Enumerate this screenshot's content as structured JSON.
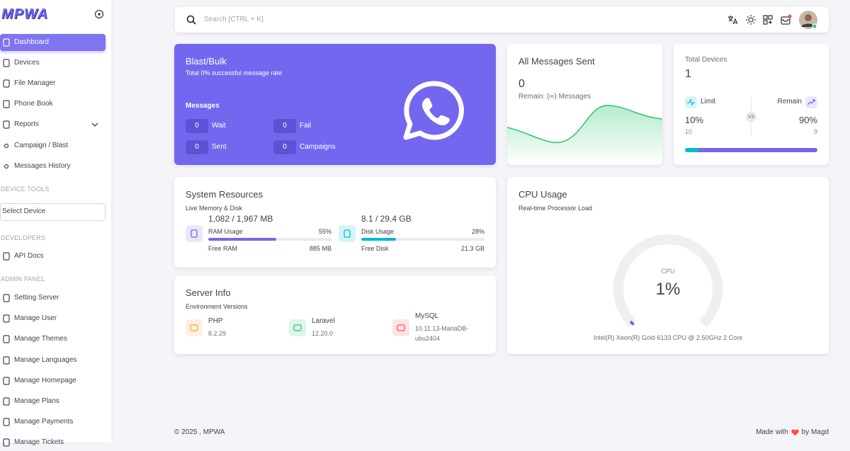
{
  "sidebar": {
    "logo": "MPWA",
    "menu": [
      "Dashboard",
      "Devices",
      "File Manager",
      "Phone Book",
      "Reports",
      "Campaign / Blast",
      "Messages History"
    ],
    "device_tools": "DEVICE TOOLS",
    "select_device": "Select Device",
    "developers": "DEVELOPERS",
    "api_docs": "API Docs",
    "admin_panel": "ADMIN PANEL",
    "admin": [
      "Setting Server",
      "Manage User",
      "Manage Themes",
      "Manage Languages",
      "Manage Homepage",
      "Manage Plans",
      "Manage Payments",
      "Manage Tickets"
    ]
  },
  "search": {
    "placeholder": "Search [CTRL + K]"
  },
  "blast": {
    "title": "Blast/Bulk",
    "subtitle": "Total 0% successful message rate",
    "messages": "Messages",
    "stats": [
      {
        "value": 0,
        "label": "Wait"
      },
      {
        "value": 0,
        "label": "Fail"
      },
      {
        "value": 0,
        "label": "Sent"
      },
      {
        "value": 0,
        "label": "Campaigns"
      }
    ]
  },
  "messages_sent": {
    "title": "All Messages Sent",
    "value": 0,
    "remain": "Remain: (∞) Messages"
  },
  "devices": {
    "title": "Total Devices",
    "value": 1,
    "limit": {
      "name": "Limit",
      "percent": {
        "value": 10,
        "label": "10%"
      },
      "count": 10
    },
    "remain": {
      "name": "Remain",
      "percent": {
        "value": 90,
        "label": "90%"
      },
      "count": 9
    },
    "vs": "VS"
  },
  "resources": {
    "title": "System Resources",
    "subtitle": "Live Memory & Disk",
    "items": [
      {
        "amount": "1,082 / 1,967 MB",
        "name": "RAM Usage",
        "percent": {
          "value": 55,
          "label": "55%"
        },
        "free_label": "Free RAM",
        "free": "885 MB"
      },
      {
        "amount": "8.1 / 29.4 GB",
        "name": "Disk Usage",
        "percent": {
          "value": 28,
          "label": "28%"
        },
        "free_label": "Free Disk",
        "free": "21.3 GB"
      }
    ]
  },
  "server": {
    "title": "Server Info",
    "subtitle": "Environment Versions",
    "items": [
      {
        "name": "PHP",
        "version": "8.2.29"
      },
      {
        "name": "Laravel",
        "version": "12.20.0"
      },
      {
        "name": "MySQL",
        "version": "10.11.13-MariaDB-ubu2404"
      }
    ]
  },
  "cpu": {
    "title": "CPU Usage",
    "subtitle": "Real-time Processor Load",
    "label": "CPU",
    "gauge": {
      "value": 1,
      "label": "1%"
    },
    "processor": "Intel(R) Xeon(R) Gold 6133 CPU @ 2.50GHz 2 Core"
  },
  "footer": {
    "copyright": "© 2025 , MPWA",
    "made_with": "Made with",
    "by": "by Magd"
  }
}
